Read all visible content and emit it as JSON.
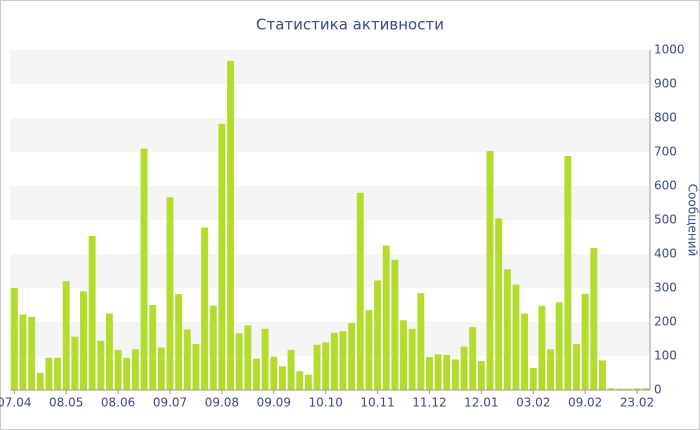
{
  "chart_data": {
    "type": "bar",
    "title": "Статистика активности",
    "y_label": "Сообщений",
    "color": "#b2dd2c",
    "grid": true,
    "ylim": [
      0,
      1000
    ],
    "yticks": [
      0,
      100,
      200,
      300,
      400,
      500,
      600,
      700,
      800,
      900,
      1000
    ],
    "categories": [
      "07.04",
      null,
      null,
      null,
      null,
      null,
      "08.05",
      null,
      null,
      null,
      null,
      null,
      "08.06",
      null,
      null,
      null,
      null,
      null,
      "09.07",
      null,
      null,
      null,
      null,
      null,
      "09.08",
      null,
      null,
      null,
      null,
      null,
      "09.09",
      null,
      null,
      null,
      null,
      null,
      "10.10",
      null,
      null,
      null,
      null,
      null,
      "10.11",
      null,
      null,
      null,
      null,
      null,
      "11.12",
      null,
      null,
      null,
      null,
      null,
      "12.01",
      null,
      null,
      null,
      null,
      null,
      "03.02",
      null,
      null,
      null,
      null,
      null,
      "09.02",
      null,
      null,
      null,
      null,
      null,
      "23.02",
      null
    ],
    "values": [
      300,
      222,
      215,
      50,
      95,
      95,
      320,
      157,
      290,
      453,
      145,
      225,
      118,
      95,
      120,
      710,
      250,
      125,
      567,
      282,
      178,
      135,
      478,
      248,
      783,
      968,
      167,
      190,
      92,
      180,
      98,
      70,
      118,
      55,
      45,
      133,
      140,
      168,
      173,
      197,
      580,
      235,
      322,
      425,
      383,
      205,
      180,
      285,
      97,
      105,
      103,
      90,
      128,
      185,
      85,
      703,
      505,
      355,
      310,
      225,
      65,
      248,
      120,
      258,
      688,
      135,
      283,
      418,
      87,
      5,
      4,
      4,
      5,
      5
    ]
  }
}
